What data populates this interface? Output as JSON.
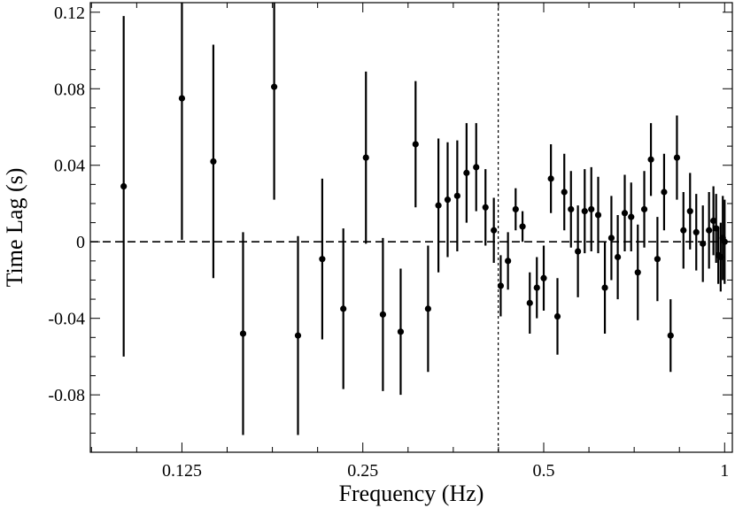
{
  "chart_data": {
    "type": "scatter",
    "xlabel": "Frequency (Hz)",
    "ylabel": "Time Lag (s)",
    "x_scale": "log2",
    "xlim": [
      0.088,
      1.03
    ],
    "ylim": [
      -0.11,
      0.125
    ],
    "x_ticks": [
      {
        "value": 0.125,
        "label": "0.125"
      },
      {
        "value": 0.25,
        "label": "0.25"
      },
      {
        "value": 0.5,
        "label": "0.5"
      },
      {
        "value": 1,
        "label": "1"
      }
    ],
    "y_ticks": [
      {
        "value": 0.12,
        "label": "0.12"
      },
      {
        "value": 0.08,
        "label": "0.08"
      },
      {
        "value": 0.04,
        "label": "0.04"
      },
      {
        "value": 0,
        "label": "0"
      },
      {
        "value": -0.04,
        "label": "-0.04"
      },
      {
        "value": -0.08,
        "label": "-0.08"
      }
    ],
    "reference_lines": {
      "zero_y": 0,
      "vertical_x": 0.42
    },
    "series": [
      {
        "points": [
          {
            "x": 0.1,
            "y": 0.029,
            "err": 0.089
          },
          {
            "x": 0.125,
            "y": 0.075,
            "err": 0.074
          },
          {
            "x": 0.141,
            "y": 0.042,
            "err": 0.061
          },
          {
            "x": 0.158,
            "y": -0.048,
            "err": 0.053
          },
          {
            "x": 0.178,
            "y": 0.081,
            "err": 0.059
          },
          {
            "x": 0.195,
            "y": -0.049,
            "err": 0.052
          },
          {
            "x": 0.214,
            "y": -0.009,
            "err": 0.042
          },
          {
            "x": 0.232,
            "y": -0.035,
            "err": 0.042
          },
          {
            "x": 0.253,
            "y": 0.044,
            "err": 0.045
          },
          {
            "x": 0.27,
            "y": -0.038,
            "err": 0.04
          },
          {
            "x": 0.289,
            "y": -0.047,
            "err": 0.033
          },
          {
            "x": 0.306,
            "y": 0.051,
            "err": 0.033
          },
          {
            "x": 0.321,
            "y": -0.035,
            "err": 0.033
          },
          {
            "x": 0.334,
            "y": 0.019,
            "err": 0.035
          },
          {
            "x": 0.346,
            "y": 0.022,
            "err": 0.03
          },
          {
            "x": 0.359,
            "y": 0.024,
            "err": 0.029
          },
          {
            "x": 0.372,
            "y": 0.036,
            "err": 0.026
          },
          {
            "x": 0.386,
            "y": 0.039,
            "err": 0.023
          },
          {
            "x": 0.4,
            "y": 0.018,
            "err": 0.02
          },
          {
            "x": 0.413,
            "y": 0.006,
            "err": 0.017
          },
          {
            "x": 0.424,
            "y": -0.023,
            "err": 0.016
          },
          {
            "x": 0.436,
            "y": -0.01,
            "err": 0.015
          },
          {
            "x": 0.449,
            "y": 0.017,
            "err": 0.011
          },
          {
            "x": 0.461,
            "y": 0.008,
            "err": 0.008
          },
          {
            "x": 0.474,
            "y": -0.032,
            "err": 0.016
          },
          {
            "x": 0.487,
            "y": -0.024,
            "err": 0.016
          },
          {
            "x": 0.5,
            "y": -0.019,
            "err": 0.017
          },
          {
            "x": 0.514,
            "y": 0.033,
            "err": 0.018
          },
          {
            "x": 0.527,
            "y": -0.039,
            "err": 0.02
          },
          {
            "x": 0.541,
            "y": 0.026,
            "err": 0.02
          },
          {
            "x": 0.555,
            "y": 0.017,
            "err": 0.02
          },
          {
            "x": 0.57,
            "y": -0.005,
            "err": 0.024
          },
          {
            "x": 0.585,
            "y": 0.016,
            "err": 0.022
          },
          {
            "x": 0.6,
            "y": 0.017,
            "err": 0.022
          },
          {
            "x": 0.616,
            "y": 0.014,
            "err": 0.02
          },
          {
            "x": 0.632,
            "y": -0.024,
            "err": 0.024
          },
          {
            "x": 0.648,
            "y": 0.002,
            "err": 0.022
          },
          {
            "x": 0.664,
            "y": -0.008,
            "err": 0.022
          },
          {
            "x": 0.682,
            "y": 0.015,
            "err": 0.02
          },
          {
            "x": 0.699,
            "y": 0.013,
            "err": 0.018
          },
          {
            "x": 0.717,
            "y": -0.016,
            "err": 0.025
          },
          {
            "x": 0.735,
            "y": 0.017,
            "err": 0.02
          },
          {
            "x": 0.754,
            "y": 0.043,
            "err": 0.019
          },
          {
            "x": 0.773,
            "y": -0.009,
            "err": 0.022
          },
          {
            "x": 0.793,
            "y": 0.026,
            "err": 0.02
          },
          {
            "x": 0.813,
            "y": -0.049,
            "err": 0.019
          },
          {
            "x": 0.833,
            "y": 0.044,
            "err": 0.022
          },
          {
            "x": 0.854,
            "y": 0.006,
            "err": 0.02
          },
          {
            "x": 0.876,
            "y": 0.016,
            "err": 0.02
          },
          {
            "x": 0.897,
            "y": 0.005,
            "err": 0.02
          },
          {
            "x": 0.92,
            "y": -0.001,
            "err": 0.02
          },
          {
            "x": 0.942,
            "y": 0.006,
            "err": 0.02
          },
          {
            "x": 0.958,
            "y": 0.011,
            "err": 0.018
          },
          {
            "x": 0.968,
            "y": 0.007,
            "err": 0.018
          },
          {
            "x": 0.976,
            "y": -0.007,
            "err": 0.015
          },
          {
            "x": 0.985,
            "y": -0.008,
            "err": 0.018
          },
          {
            "x": 0.993,
            "y": 0.002,
            "err": 0.022
          },
          {
            "x": 1.0,
            "y": 0.0,
            "err": 0.022
          }
        ]
      }
    ]
  }
}
